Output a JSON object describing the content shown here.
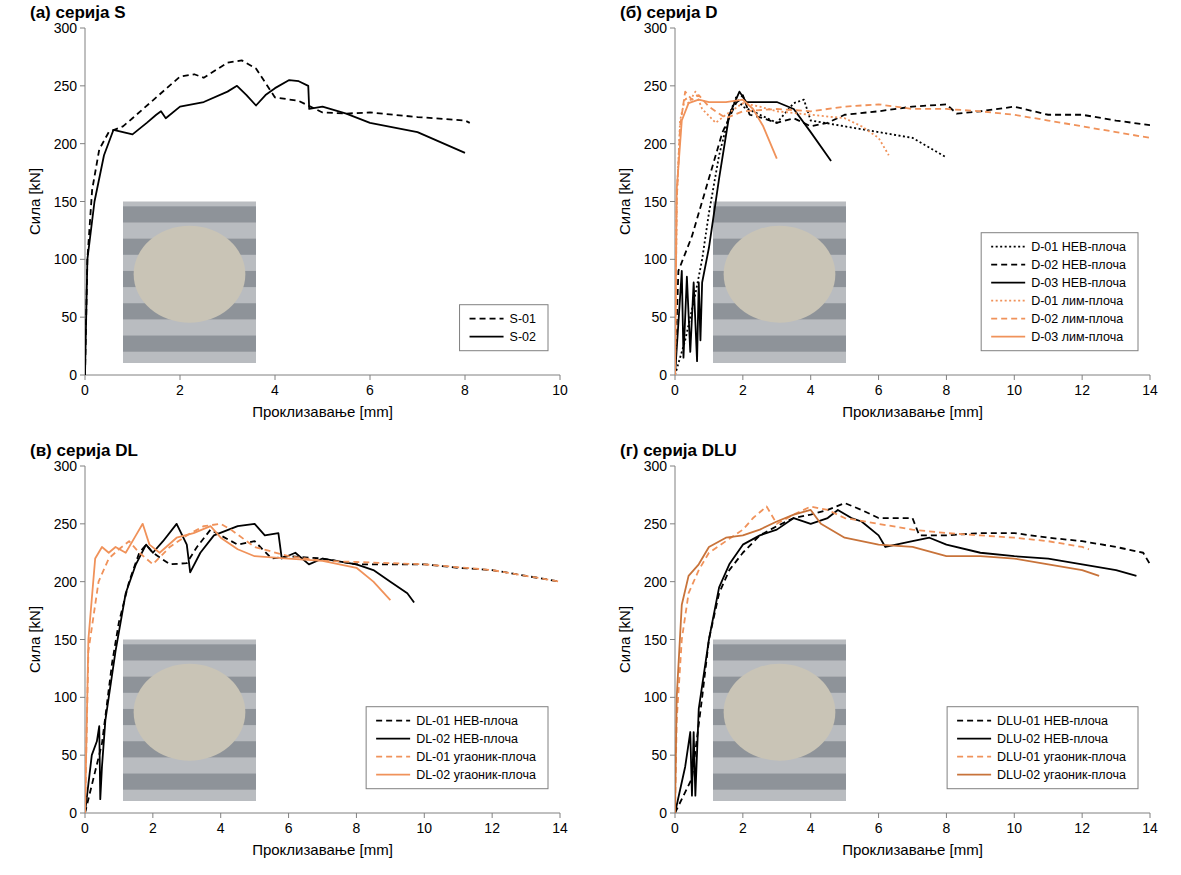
{
  "chart_data": [
    {
      "type": "line",
      "title": "(а) серија S",
      "x_label": "Проклизавање [mm]",
      "y_label": "Сила [kN]",
      "xlim": [
        0,
        10
      ],
      "xticks": [
        0,
        2,
        4,
        6,
        8,
        10
      ],
      "ylim": [
        0,
        300
      ],
      "yticks": [
        0,
        50,
        100,
        150,
        200,
        250,
        300
      ],
      "legend": "lower right",
      "series": [
        {
          "name": "S-01",
          "color": "#000000",
          "line_style": "dashed",
          "x": [
            0,
            0.05,
            0.15,
            0.3,
            0.5,
            0.8,
            1.0,
            1.5,
            2,
            2.3,
            2.5,
            3,
            3.3,
            3.6,
            4,
            4.5,
            5,
            5.5,
            6,
            7,
            8,
            8.1
          ],
          "values": [
            0,
            100,
            160,
            195,
            210,
            215,
            222,
            240,
            258,
            260,
            257,
            270,
            272,
            265,
            240,
            237,
            227,
            226,
            227,
            223,
            220,
            218
          ]
        },
        {
          "name": "S-02",
          "color": "#000000",
          "line_style": "solid",
          "x": [
            0,
            0.05,
            0.2,
            0.4,
            0.6,
            0.8,
            1,
            1.3,
            1.5,
            1.6,
            1.7,
            2,
            2.5,
            3,
            3.2,
            3.4,
            3.6,
            3.8,
            4,
            4.3,
            4.5,
            4.7,
            4.72,
            5,
            5.5,
            6,
            7,
            8
          ],
          "values": [
            0,
            100,
            150,
            190,
            212,
            210,
            208,
            218,
            225,
            228,
            222,
            232,
            236,
            245,
            250,
            242,
            233,
            242,
            248,
            255,
            254,
            250,
            230,
            232,
            226,
            218,
            210,
            192
          ]
        }
      ]
    },
    {
      "type": "line",
      "title": "(б) серија D",
      "x_label": "Проклизавање [mm]",
      "y_label": "Сила [kN]",
      "xlim": [
        0,
        14
      ],
      "xticks": [
        0,
        2,
        4,
        6,
        8,
        10,
        12,
        14
      ],
      "ylim": [
        0,
        300
      ],
      "yticks": [
        0,
        50,
        100,
        150,
        200,
        250,
        300
      ],
      "legend": "lower right",
      "series": [
        {
          "name": "D-01 НЕВ-плоча",
          "color": "#000000",
          "line_style": "dotted",
          "x": [
            0,
            0.3,
            0.6,
            0.8,
            1,
            1.3,
            1.6,
            1.8,
            2,
            2.5,
            3,
            3.5,
            3.8,
            4,
            5,
            6,
            7,
            8
          ],
          "values": [
            0,
            30,
            70,
            100,
            140,
            190,
            225,
            240,
            232,
            225,
            218,
            235,
            238,
            220,
            215,
            210,
            205,
            188
          ]
        },
        {
          "name": "D-02 НЕВ-плоча",
          "color": "#000000",
          "line_style": "dashed",
          "x": [
            0,
            0.1,
            0.5,
            1,
            1.4,
            1.8,
            2,
            2.2,
            2.6,
            3,
            3.5,
            4,
            4.5,
            5,
            6,
            7,
            8,
            8.3,
            9,
            10,
            11,
            12,
            13,
            14
          ],
          "values": [
            0,
            90,
            120,
            170,
            210,
            235,
            242,
            225,
            222,
            218,
            222,
            215,
            218,
            225,
            228,
            232,
            234,
            226,
            228,
            232,
            225,
            225,
            220,
            216
          ]
        },
        {
          "name": "D-03 НЕВ-плоча",
          "color": "#000000",
          "line_style": "solid",
          "x": [
            0,
            0.2,
            0.25,
            0.35,
            0.45,
            0.55,
            0.65,
            0.7,
            0.75,
            0.8,
            1,
            1.3,
            1.6,
            1.9,
            2.1,
            2.5,
            3,
            3.5,
            4,
            4.6
          ],
          "values": [
            0,
            90,
            15,
            85,
            20,
            80,
            12,
            80,
            30,
            80,
            110,
            170,
            225,
            245,
            236,
            236,
            236,
            230,
            210,
            185
          ]
        },
        {
          "name": "D-01 лим-плоча",
          "color": "#f0925a",
          "line_style": "dotted",
          "x": [
            0,
            0.05,
            0.15,
            0.3,
            0.4,
            0.6,
            0.8,
            1.2,
            1.5,
            2,
            2.5,
            3,
            4,
            5,
            5.5,
            6,
            6.3
          ],
          "values": [
            0,
            150,
            220,
            240,
            235,
            245,
            230,
            218,
            225,
            235,
            232,
            228,
            225,
            222,
            215,
            205,
            190
          ]
        },
        {
          "name": "D-02 лим-плоча",
          "color": "#f0925a",
          "line_style": "dashed",
          "x": [
            0,
            0.05,
            0.15,
            0.3,
            0.5,
            0.7,
            1,
            1.5,
            2,
            3,
            4,
            5,
            6,
            7,
            8,
            9,
            10,
            11,
            12,
            13,
            14
          ],
          "values": [
            0,
            150,
            215,
            245,
            238,
            242,
            232,
            222,
            228,
            230,
            228,
            232,
            234,
            230,
            230,
            228,
            225,
            220,
            215,
            210,
            205
          ]
        },
        {
          "name": "D-03 лим-плоча",
          "color": "#f0925a",
          "line_style": "solid",
          "x": [
            0,
            0.05,
            0.2,
            0.4,
            0.7,
            1,
            1.5,
            2,
            2.3,
            2.6,
            3
          ],
          "values": [
            0,
            160,
            220,
            235,
            238,
            236,
            236,
            238,
            230,
            215,
            187
          ]
        }
      ]
    },
    {
      "type": "line",
      "title": "(в) серија DL",
      "x_label": "Проклизавање [mm]",
      "y_label": "Сила [kN]",
      "xlim": [
        0,
        14
      ],
      "xticks": [
        0,
        2,
        4,
        6,
        8,
        10,
        12,
        14
      ],
      "ylim": [
        0,
        300
      ],
      "yticks": [
        0,
        50,
        100,
        150,
        200,
        250,
        300
      ],
      "legend": "lower right",
      "series": [
        {
          "name": "DL-01 НЕВ-плоча",
          "color": "#000000",
          "line_style": "dashed",
          "x": [
            0,
            0.5,
            0.8,
            1,
            1.3,
            1.6,
            1.8,
            2,
            2.5,
            3,
            3.3,
            3.7,
            4,
            4.5,
            5,
            5.5,
            6,
            7,
            8,
            9,
            10,
            11,
            12,
            13,
            14
          ],
          "values": [
            0,
            60,
            130,
            165,
            200,
            225,
            232,
            225,
            215,
            216,
            230,
            245,
            240,
            232,
            235,
            220,
            222,
            220,
            215,
            215,
            215,
            212,
            210,
            205,
            200
          ]
        },
        {
          "name": "DL-02 НЕВ-плоча",
          "color": "#000000",
          "line_style": "solid",
          "x": [
            0,
            0.2,
            0.35,
            0.42,
            0.45,
            0.5,
            0.6,
            0.9,
            1.2,
            1.5,
            1.8,
            2,
            2.3,
            2.7,
            3,
            3.1,
            3.4,
            3.8,
            4.5,
            5,
            5.3,
            5.7,
            5.8,
            6.2,
            6.6,
            7,
            8,
            8.5,
            9,
            9.5,
            9.7
          ],
          "values": [
            0,
            50,
            62,
            75,
            12,
            40,
            80,
            140,
            190,
            215,
            232,
            225,
            235,
            250,
            232,
            208,
            225,
            240,
            248,
            250,
            240,
            242,
            220,
            225,
            215,
            220,
            215,
            210,
            200,
            190,
            182
          ]
        },
        {
          "name": "DL-01 угаоник-плоча",
          "color": "#f0925a",
          "line_style": "dashed",
          "x": [
            0,
            0.1,
            0.4,
            0.7,
            1,
            1.3,
            1.6,
            2,
            2.5,
            3,
            3.5,
            4,
            4.3,
            5,
            6,
            7,
            8,
            10,
            12,
            14
          ],
          "values": [
            0,
            140,
            200,
            220,
            228,
            235,
            225,
            215,
            230,
            240,
            248,
            250,
            245,
            230,
            222,
            218,
            217,
            215,
            210,
            200
          ]
        },
        {
          "name": "DL-02 угаоник-плоча",
          "color": "#f0925a",
          "line_style": "solid",
          "x": [
            0,
            0.1,
            0.3,
            0.5,
            0.7,
            0.9,
            1.2,
            1.5,
            1.7,
            1.9,
            2.2,
            2.7,
            3.2,
            3.7,
            4,
            4.5,
            5,
            6,
            7,
            8,
            8.5,
            9
          ],
          "values": [
            0,
            150,
            220,
            230,
            225,
            230,
            225,
            240,
            250,
            232,
            225,
            238,
            242,
            248,
            238,
            228,
            222,
            220,
            218,
            212,
            200,
            184
          ]
        }
      ]
    },
    {
      "type": "line",
      "title": "(г) серија DLU",
      "x_label": "Проклизавање [mm]",
      "y_label": "Сила [kN]",
      "xlim": [
        0,
        14
      ],
      "xticks": [
        0,
        2,
        4,
        6,
        8,
        10,
        12,
        14
      ],
      "ylim": [
        0,
        300
      ],
      "yticks": [
        0,
        50,
        100,
        150,
        200,
        250,
        300
      ],
      "legend": "lower right",
      "series": [
        {
          "name": "DLU-01 НЕВ-плоча",
          "color": "#000000",
          "line_style": "dashed",
          "x": [
            0,
            0.5,
            0.8,
            1,
            1.3,
            1.6,
            2,
            2.5,
            3,
            3.5,
            4,
            4.5,
            5,
            5.5,
            6,
            6.5,
            7,
            7.2,
            8,
            9,
            10,
            11,
            12,
            13,
            13.8,
            14
          ],
          "values": [
            0,
            30,
            100,
            150,
            190,
            210,
            225,
            240,
            248,
            255,
            258,
            262,
            268,
            262,
            255,
            255,
            255,
            240,
            240,
            242,
            242,
            238,
            235,
            230,
            225,
            215
          ]
        },
        {
          "name": "DLU-02 НЕВ-плоча",
          "color": "#000000",
          "line_style": "solid",
          "x": [
            0,
            0.3,
            0.45,
            0.5,
            0.55,
            0.6,
            0.7,
            1,
            1.3,
            1.6,
            2,
            2.5,
            3,
            3.5,
            4,
            4.5,
            4.8,
            5.2,
            5.5,
            6,
            6.2,
            7,
            7.5,
            8,
            9,
            10,
            11,
            12,
            13,
            13.6
          ],
          "values": [
            0,
            40,
            70,
            15,
            70,
            15,
            90,
            150,
            195,
            215,
            232,
            240,
            245,
            255,
            250,
            255,
            262,
            255,
            252,
            240,
            230,
            235,
            238,
            232,
            225,
            222,
            220,
            215,
            210,
            205
          ]
        },
        {
          "name": "DLU-01 угаоник-плоча",
          "color": "#f0925a",
          "line_style": "dashed",
          "x": [
            0,
            0.05,
            0.2,
            0.4,
            0.7,
            1,
            1.5,
            2,
            2.3,
            2.7,
            3,
            3.5,
            4,
            4.5,
            5,
            6,
            7,
            8,
            9,
            10,
            11,
            12,
            12.2
          ],
          "values": [
            0,
            80,
            150,
            190,
            210,
            225,
            235,
            245,
            255,
            265,
            250,
            258,
            265,
            262,
            255,
            250,
            245,
            242,
            240,
            238,
            235,
            230,
            228
          ]
        },
        {
          "name": "DLU-02 угаоник-плоча",
          "color": "#c8733a",
          "line_style": "solid",
          "x": [
            0,
            0.05,
            0.2,
            0.4,
            0.7,
            1,
            1.5,
            2,
            2.5,
            3,
            3.5,
            4,
            4.3,
            5,
            6,
            7,
            8,
            9,
            10,
            11,
            12,
            12.5
          ],
          "values": [
            0,
            100,
            180,
            205,
            215,
            230,
            238,
            240,
            245,
            252,
            258,
            262,
            250,
            238,
            232,
            230,
            222,
            222,
            220,
            215,
            210,
            205
          ]
        }
      ]
    }
  ]
}
